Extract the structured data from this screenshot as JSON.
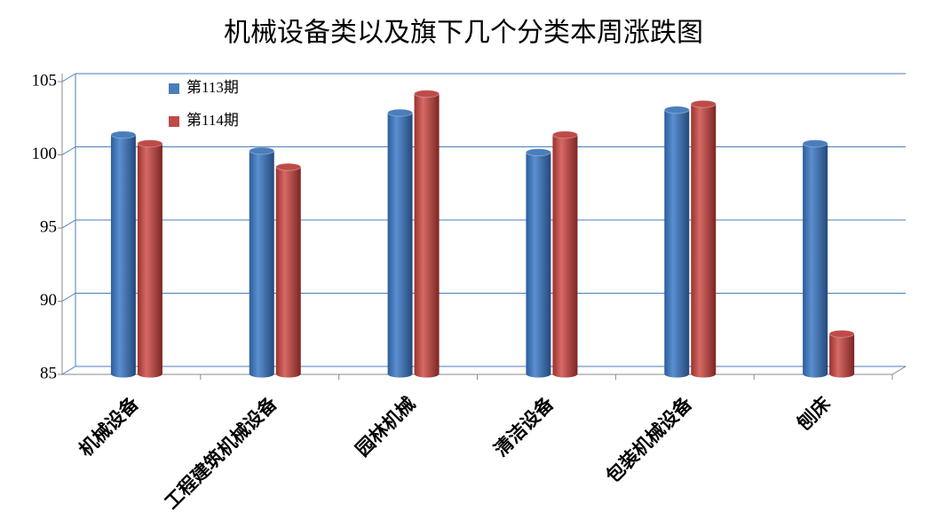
{
  "chart_data": {
    "type": "bar3d",
    "title": "机械设备类以及旗下几个分类本周涨跌图",
    "categories": [
      "机械设备",
      "工程建筑机械设备",
      "园林机械",
      "清洁设备",
      "包装机械设备",
      "刨床"
    ],
    "series": [
      {
        "name": "第113期",
        "color": "#4a7ebb",
        "values": [
          101.1,
          100.0,
          102.6,
          99.9,
          102.8,
          100.5
        ]
      },
      {
        "name": "第114期",
        "color": "#be4b48",
        "values": [
          100.5,
          98.9,
          103.9,
          101.1,
          103.2,
          87.5
        ]
      }
    ],
    "ylim": [
      85,
      105
    ],
    "yticks": [
      85,
      90,
      95,
      100,
      105
    ],
    "grid": true,
    "legend": "upper-left"
  }
}
